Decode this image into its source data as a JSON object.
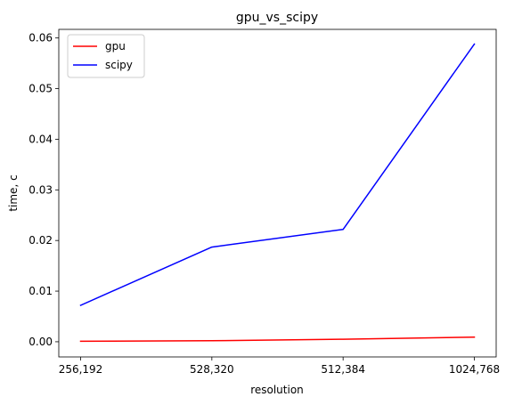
{
  "chart_data": {
    "type": "line",
    "title": "gpu_vs_scipy",
    "xlabel": "resolution",
    "ylabel": "time, c",
    "categories": [
      "256,192",
      "528,320",
      "512,384",
      "1024,768"
    ],
    "series": [
      {
        "name": "gpu",
        "color": "#ff0000",
        "values": [
          0.0001,
          0.0002,
          0.0005,
          0.0009
        ]
      },
      {
        "name": "scipy",
        "color": "#0000ff",
        "values": [
          0.0072,
          0.0187,
          0.0222,
          0.0588
        ]
      }
    ],
    "ylim": [
      -0.003,
      0.0617
    ],
    "yticks": [
      "0.00",
      "0.01",
      "0.02",
      "0.03",
      "0.04",
      "0.05",
      "0.06"
    ],
    "ytick_values": [
      0,
      0.01,
      0.02,
      0.03,
      0.04,
      0.05,
      0.06
    ],
    "grid": false,
    "legend_position": "top-left"
  }
}
